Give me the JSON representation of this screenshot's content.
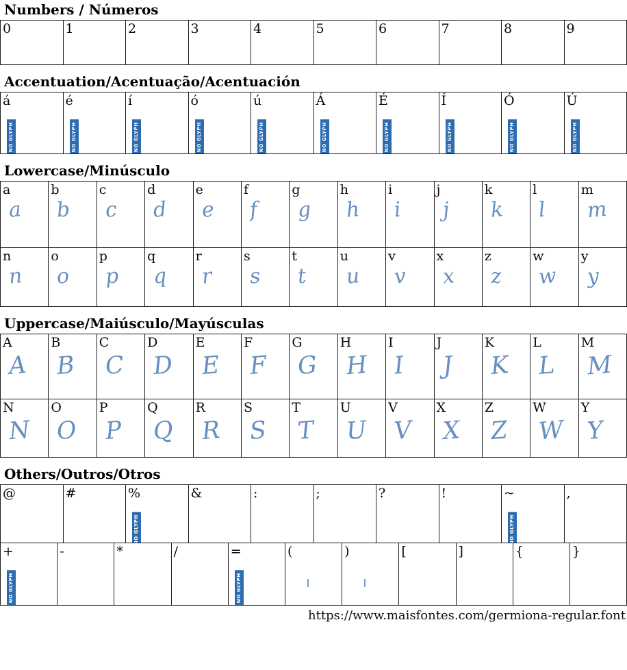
{
  "font_page": {
    "ink_color": "#4d7cb4",
    "badge_bg": "#2e6cb0",
    "badge_text": "NO GLYPH"
  },
  "footer": {
    "url": "https://www.maisfontes.com/germiona-regular.font"
  },
  "sections": [
    {
      "id": "numbers",
      "title": "Numbers / Números",
      "rows": [
        [
          {
            "c": "0",
            "g": "none"
          },
          {
            "c": "1",
            "g": "none"
          },
          {
            "c": "2",
            "g": "none"
          },
          {
            "c": "3",
            "g": "none"
          },
          {
            "c": "4",
            "g": "none"
          },
          {
            "c": "5",
            "g": "none"
          },
          {
            "c": "6",
            "g": "none"
          },
          {
            "c": "7",
            "g": "none"
          },
          {
            "c": "8",
            "g": "none"
          },
          {
            "c": "9",
            "g": "none"
          }
        ]
      ]
    },
    {
      "id": "accent",
      "title": "Accentuation/Acentuação/Acentuación",
      "rows": [
        [
          {
            "c": "á",
            "g": "badge"
          },
          {
            "c": "é",
            "g": "badge"
          },
          {
            "c": "í",
            "g": "badge"
          },
          {
            "c": "ó",
            "g": "badge"
          },
          {
            "c": "ú",
            "g": "badge"
          },
          {
            "c": "Á",
            "g": "badge"
          },
          {
            "c": "É",
            "g": "badge"
          },
          {
            "c": "Í",
            "g": "badge"
          },
          {
            "c": "Ó",
            "g": "badge"
          },
          {
            "c": "Ú",
            "g": "badge"
          }
        ]
      ]
    },
    {
      "id": "lowercase",
      "title": "Lowercase/Minúsculo",
      "rows": [
        [
          {
            "c": "a",
            "g": "hand"
          },
          {
            "c": "b",
            "g": "hand"
          },
          {
            "c": "c",
            "g": "hand"
          },
          {
            "c": "d",
            "g": "hand"
          },
          {
            "c": "e",
            "g": "hand"
          },
          {
            "c": "f",
            "g": "hand"
          },
          {
            "c": "g",
            "g": "hand"
          },
          {
            "c": "h",
            "g": "hand"
          },
          {
            "c": "i",
            "g": "hand"
          },
          {
            "c": "j",
            "g": "hand"
          },
          {
            "c": "k",
            "g": "hand"
          },
          {
            "c": "l",
            "g": "hand"
          },
          {
            "c": "m",
            "g": "hand"
          }
        ],
        [
          {
            "c": "n",
            "g": "hand"
          },
          {
            "c": "o",
            "g": "hand"
          },
          {
            "c": "p",
            "g": "hand"
          },
          {
            "c": "q",
            "g": "hand"
          },
          {
            "c": "r",
            "g": "hand"
          },
          {
            "c": "s",
            "g": "hand"
          },
          {
            "c": "t",
            "g": "hand"
          },
          {
            "c": "u",
            "g": "hand"
          },
          {
            "c": "v",
            "g": "hand"
          },
          {
            "c": "x",
            "g": "hand"
          },
          {
            "c": "z",
            "g": "hand"
          },
          {
            "c": "w",
            "g": "hand"
          },
          {
            "c": "y",
            "g": "hand"
          }
        ]
      ]
    },
    {
      "id": "uppercase",
      "title": "Uppercase/Maiúsculo/Mayúsculas",
      "rows": [
        [
          {
            "c": "A",
            "g": "hand"
          },
          {
            "c": "B",
            "g": "hand"
          },
          {
            "c": "C",
            "g": "hand"
          },
          {
            "c": "D",
            "g": "hand"
          },
          {
            "c": "E",
            "g": "hand"
          },
          {
            "c": "F",
            "g": "hand"
          },
          {
            "c": "G",
            "g": "hand"
          },
          {
            "c": "H",
            "g": "hand"
          },
          {
            "c": "I",
            "g": "hand"
          },
          {
            "c": "J",
            "g": "hand"
          },
          {
            "c": "K",
            "g": "hand"
          },
          {
            "c": "L",
            "g": "hand"
          },
          {
            "c": "M",
            "g": "hand"
          }
        ],
        [
          {
            "c": "N",
            "g": "hand"
          },
          {
            "c": "O",
            "g": "hand"
          },
          {
            "c": "P",
            "g": "hand"
          },
          {
            "c": "Q",
            "g": "hand"
          },
          {
            "c": "R",
            "g": "hand"
          },
          {
            "c": "S",
            "g": "hand"
          },
          {
            "c": "T",
            "g": "hand"
          },
          {
            "c": "U",
            "g": "hand"
          },
          {
            "c": "V",
            "g": "hand"
          },
          {
            "c": "X",
            "g": "hand"
          },
          {
            "c": "Z",
            "g": "hand"
          },
          {
            "c": "W",
            "g": "hand"
          },
          {
            "c": "Y",
            "g": "hand"
          }
        ]
      ]
    },
    {
      "id": "others",
      "title": "Others/Outros/Otros",
      "rows": [
        [
          {
            "c": "@",
            "g": "none"
          },
          {
            "c": "#",
            "g": "none"
          },
          {
            "c": "%",
            "g": "badge"
          },
          {
            "c": "&",
            "g": "none"
          },
          {
            "c": ":",
            "g": "none"
          },
          {
            "c": ";",
            "g": "none"
          },
          {
            "c": "?",
            "g": "none"
          },
          {
            "c": "!",
            "g": "none"
          },
          {
            "c": "~",
            "g": "badge"
          },
          {
            "c": ",",
            "g": "none"
          }
        ],
        [
          {
            "c": "+",
            "g": "badge"
          },
          {
            "c": "-",
            "g": "none"
          },
          {
            "c": "*",
            "g": "none"
          },
          {
            "c": "/",
            "g": "none"
          },
          {
            "c": "=",
            "g": "badge"
          },
          {
            "c": "(",
            "g": "tiny"
          },
          {
            "c": ")",
            "g": "tiny"
          },
          {
            "c": "[",
            "g": "none"
          },
          {
            "c": "]",
            "g": "none"
          },
          {
            "c": "{",
            "g": "none"
          },
          {
            "c": "}",
            "g": "none"
          }
        ]
      ]
    }
  ]
}
